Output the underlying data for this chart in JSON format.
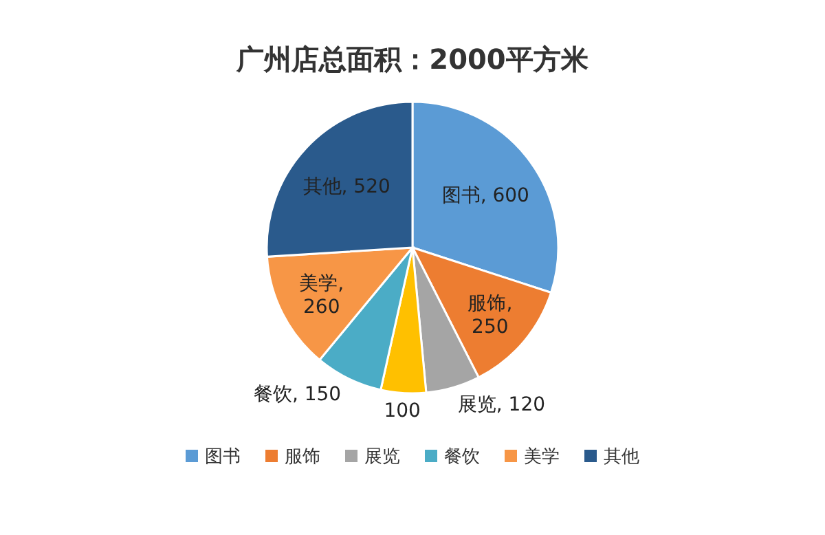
{
  "chart_data": {
    "type": "pie",
    "title": "广州店总面积：2000平方米",
    "categories": [
      "图书",
      "服饰",
      "展览",
      null,
      "餐饮",
      "美学",
      "其他"
    ],
    "values": [
      600,
      250,
      120,
      100,
      150,
      260,
      520
    ],
    "colors": [
      "#5b9bd5",
      "#ed7d31",
      "#a5a5a5",
      "#ffc000",
      "#4bacc6",
      "#f79646",
      "#2a5a8c"
    ],
    "value_labels": [
      "图书, 600",
      "服饰, 250",
      "展览, 120",
      "100",
      "餐饮, 150",
      "美学, 260",
      "其他, 520"
    ],
    "legend": "bottom"
  }
}
